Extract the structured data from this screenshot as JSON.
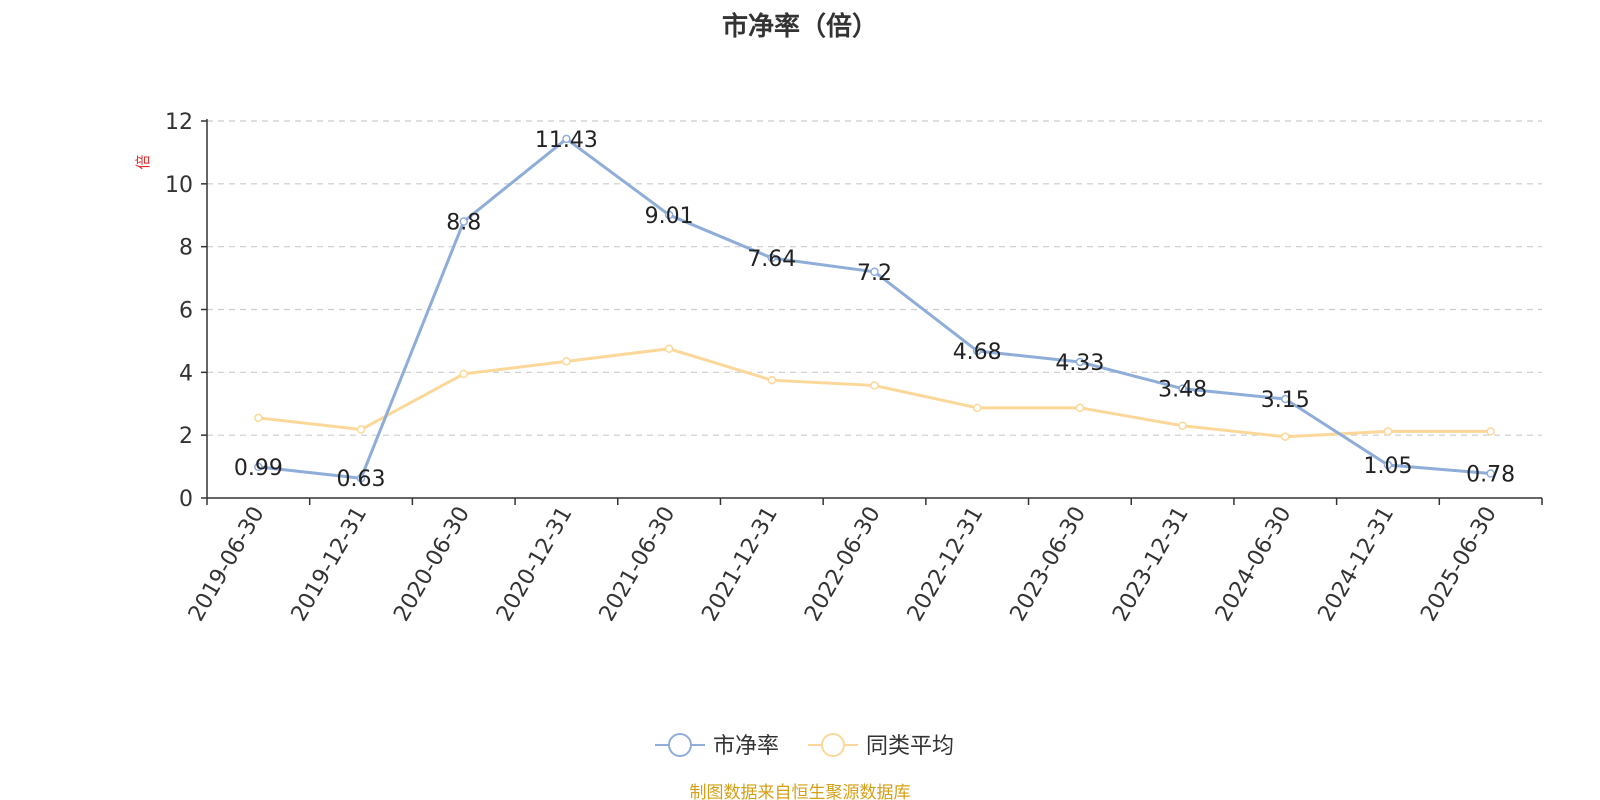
{
  "chart_data": {
    "type": "line",
    "title": "市净率（倍）",
    "ylabel": "倍",
    "ylim": [
      0,
      12
    ],
    "yticks": [
      "0",
      "2",
      "4",
      "6",
      "8",
      "10",
      "12"
    ],
    "grid": true,
    "legend_position": "bottom-center",
    "categories": [
      "2019-06-30",
      "2019-12-31",
      "2020-06-30",
      "2020-12-31",
      "2021-06-30",
      "2021-12-31",
      "2022-06-30",
      "2022-12-31",
      "2023-06-30",
      "2023-12-31",
      "2024-06-30",
      "2024-12-31",
      "2025-06-30"
    ],
    "series": [
      {
        "name": "市净率",
        "color": "#8fadd9",
        "show_labels": true,
        "values": [
          0.99,
          0.63,
          8.8,
          11.43,
          9.01,
          7.64,
          7.2,
          4.68,
          4.33,
          3.48,
          3.15,
          1.05,
          0.78
        ],
        "labels": [
          "0.99",
          "0.63",
          "8.8",
          "11.43",
          "9.01",
          "7.64",
          "7.2",
          "4.68",
          "4.33",
          "3.48",
          "3.15",
          "1.05",
          "0.78"
        ]
      },
      {
        "name": "同类平均",
        "color": "#fbd89a",
        "show_labels": false,
        "values": [
          2.55,
          2.18,
          3.95,
          4.35,
          4.75,
          3.75,
          3.58,
          2.87,
          2.87,
          2.3,
          1.95,
          2.12,
          2.12
        ]
      }
    ]
  },
  "source_note": "制图数据来自恒生聚源数据库"
}
